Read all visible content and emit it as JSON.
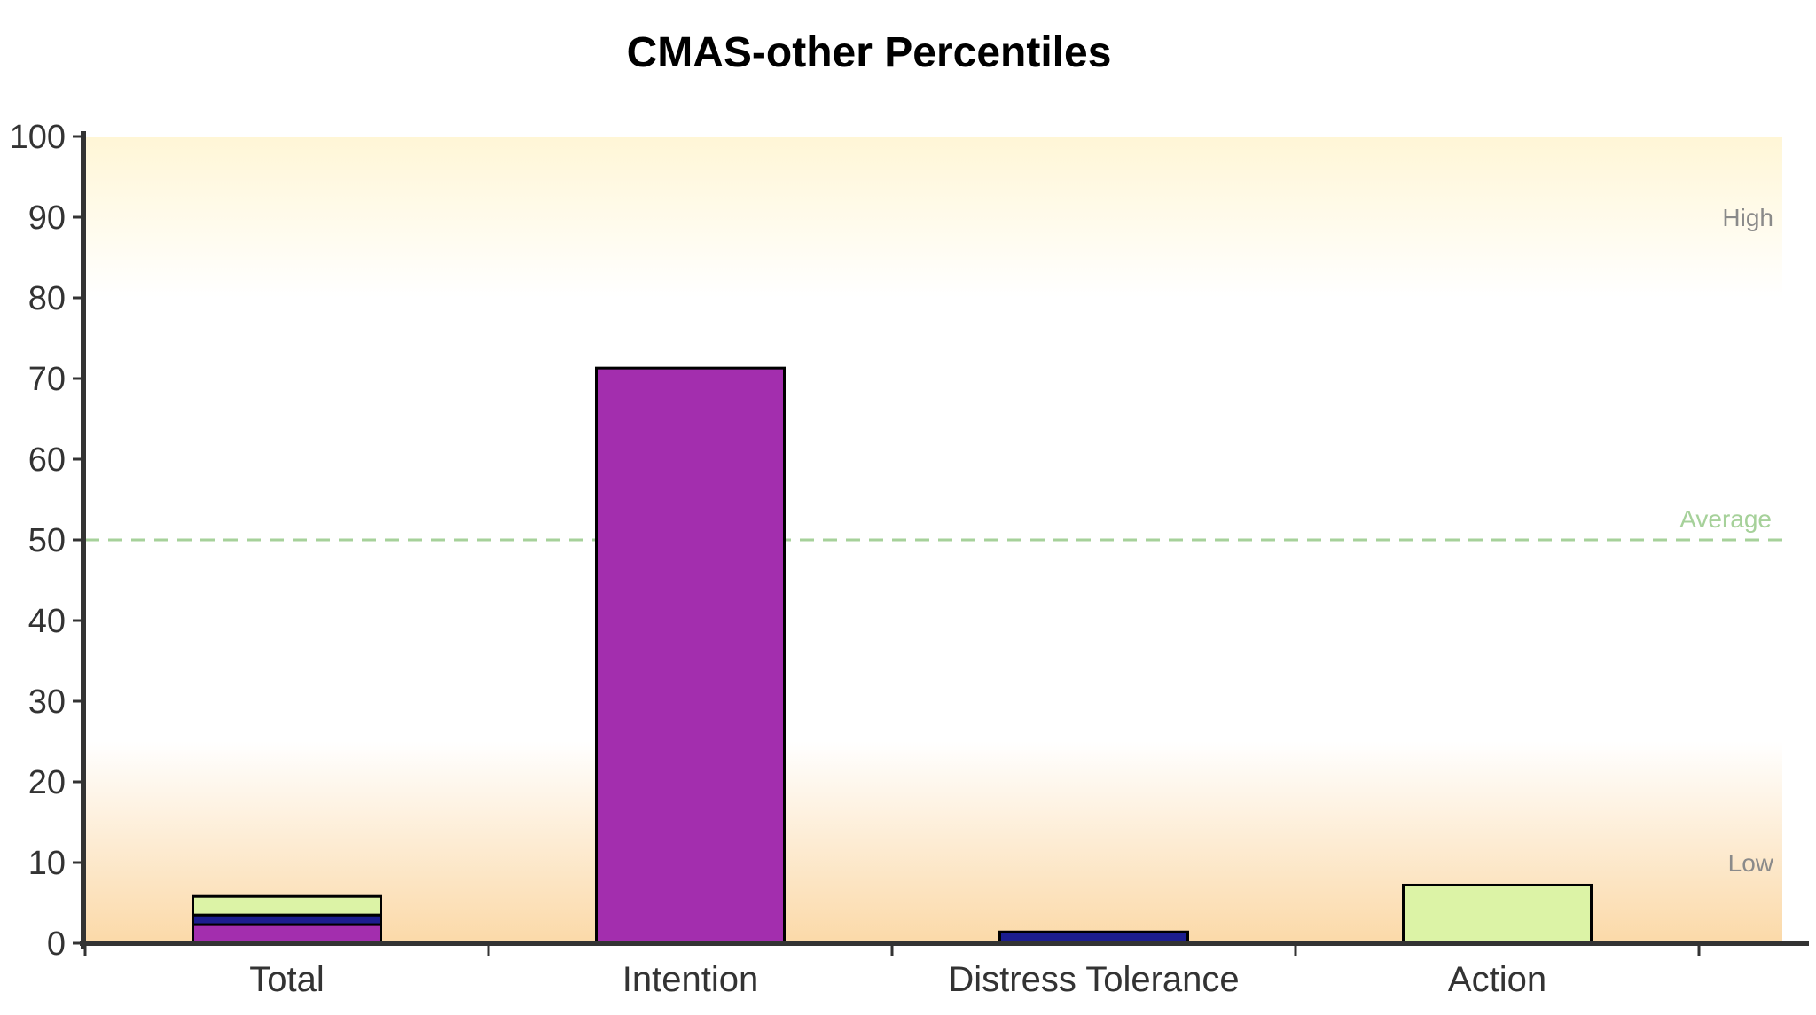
{
  "chart_data": {
    "type": "bar",
    "title": "CMAS-other Percentiles",
    "xlabel": "",
    "ylabel": "",
    "ylim": [
      0,
      100
    ],
    "yticks": [
      0,
      10,
      20,
      30,
      40,
      50,
      60,
      70,
      80,
      90,
      100
    ],
    "categories": [
      "Total",
      "Intention",
      "Distress Tolerance",
      "Action"
    ],
    "stacked_bar": {
      "category": "Total",
      "segments": [
        {
          "value": 2.3,
          "color": "#a32eae"
        },
        {
          "value": 1.2,
          "color": "#1c1d8f"
        },
        {
          "value": 2.3,
          "color": "#dcf3a6"
        }
      ]
    },
    "bars": [
      {
        "category": "Intention",
        "value": 71.3,
        "color": "#a32eae"
      },
      {
        "category": "Distress Tolerance",
        "value": 1.4,
        "color": "#1c1d8f"
      },
      {
        "category": "Action",
        "value": 7.2,
        "color": "#dcf3a6"
      }
    ],
    "reference_line": {
      "value": 50,
      "label": "Average",
      "color": "#a6d19a",
      "style": "dashed"
    },
    "bands": [
      {
        "label": "High",
        "from": 80,
        "to": 100,
        "color": "#fff7d9"
      },
      {
        "label": "Low",
        "from": 0,
        "to": 25,
        "color": "#fbdcb0"
      }
    ],
    "band_label_values": {
      "High": 90,
      "Low": 10
    },
    "grid": false,
    "legend": "none"
  }
}
